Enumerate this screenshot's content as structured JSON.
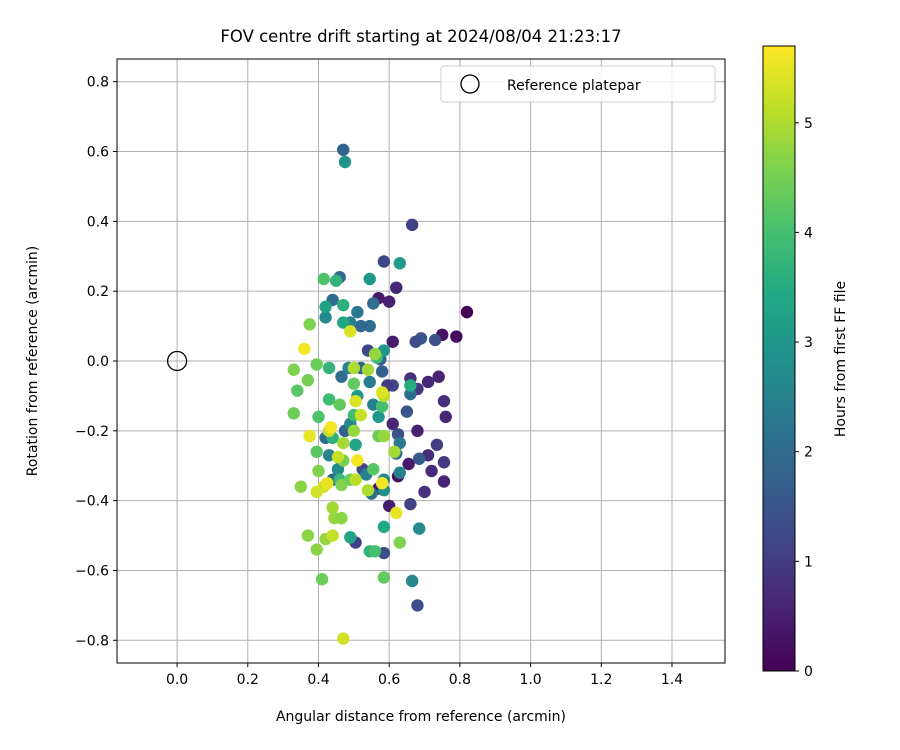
{
  "chart_data": {
    "type": "scatter",
    "title": "FOV centre drift starting at 2024/08/04 21:23:17",
    "xlabel": "Angular distance from reference (arcmin)",
    "ylabel": "Rotation from reference (arcmin)",
    "xlim": [
      -0.17,
      1.55
    ],
    "ylim": [
      -0.865,
      0.865
    ],
    "x_ticks": [
      0.0,
      0.2,
      0.4,
      0.6,
      0.8,
      1.0,
      1.2,
      1.4
    ],
    "x_tick_labels": [
      "0.0",
      "0.2",
      "0.4",
      "0.6",
      "0.8",
      "1.0",
      "1.2",
      "1.4"
    ],
    "y_ticks": [
      -0.8,
      -0.6,
      -0.4,
      -0.2,
      0.0,
      0.2,
      0.4,
      0.6,
      0.8
    ],
    "y_tick_labels": [
      "−0.8",
      "−0.6",
      "−0.4",
      "−0.2",
      "0.0",
      "0.2",
      "0.4",
      "0.6",
      "0.8"
    ],
    "grid": true,
    "legend": {
      "label": "Reference platepar",
      "position": "top-right"
    },
    "reference": {
      "x": 0.0,
      "y": 0.0
    },
    "colorbar": {
      "label": "Hours from first FF file",
      "colormap": "viridis",
      "range": [
        0,
        5.7
      ],
      "ticks": [
        0,
        1,
        2,
        3,
        4,
        5
      ],
      "tick_labels": [
        "0",
        "1",
        "2",
        "3",
        "4",
        "5"
      ]
    },
    "points": [
      {
        "x": 0.82,
        "y": 0.14,
        "h": 0.05
      },
      {
        "x": 0.79,
        "y": 0.07,
        "h": 0.15
      },
      {
        "x": 0.75,
        "y": 0.075,
        "h": 0.3
      },
      {
        "x": 0.6,
        "y": 0.17,
        "h": 0.5
      },
      {
        "x": 0.57,
        "y": 0.18,
        "h": 0.4
      },
      {
        "x": 0.62,
        "y": 0.21,
        "h": 0.6
      },
      {
        "x": 0.61,
        "y": 0.055,
        "h": 0.45
      },
      {
        "x": 0.74,
        "y": -0.045,
        "h": 0.55
      },
      {
        "x": 0.71,
        "y": -0.06,
        "h": 0.65
      },
      {
        "x": 0.76,
        "y": -0.16,
        "h": 0.6
      },
      {
        "x": 0.755,
        "y": -0.115,
        "h": 0.75
      },
      {
        "x": 0.72,
        "y": -0.315,
        "h": 0.7
      },
      {
        "x": 0.755,
        "y": -0.29,
        "h": 0.9
      },
      {
        "x": 0.755,
        "y": -0.345,
        "h": 0.55
      },
      {
        "x": 0.7,
        "y": -0.375,
        "h": 0.8
      },
      {
        "x": 0.735,
        "y": -0.24,
        "h": 1.0
      },
      {
        "x": 0.71,
        "y": -0.27,
        "h": 0.75
      },
      {
        "x": 0.68,
        "y": -0.2,
        "h": 0.5
      },
      {
        "x": 0.655,
        "y": -0.295,
        "h": 0.4
      },
      {
        "x": 0.625,
        "y": -0.33,
        "h": 0.3
      },
      {
        "x": 0.61,
        "y": -0.18,
        "h": 0.6
      },
      {
        "x": 0.6,
        "y": -0.415,
        "h": 0.45
      },
      {
        "x": 0.57,
        "y": -0.365,
        "h": 0.35
      },
      {
        "x": 0.66,
        "y": -0.05,
        "h": 0.8
      },
      {
        "x": 0.68,
        "y": -0.08,
        "h": 0.9
      },
      {
        "x": 0.66,
        "y": -0.41,
        "h": 1.1
      },
      {
        "x": 0.68,
        "y": -0.7,
        "h": 1.3
      },
      {
        "x": 0.665,
        "y": 0.39,
        "h": 1.1
      },
      {
        "x": 0.585,
        "y": 0.285,
        "h": 1.2
      },
      {
        "x": 0.73,
        "y": 0.06,
        "h": 1.4
      },
      {
        "x": 0.69,
        "y": 0.065,
        "h": 1.5
      },
      {
        "x": 0.675,
        "y": 0.055,
        "h": 1.3
      },
      {
        "x": 0.65,
        "y": -0.145,
        "h": 1.5
      },
      {
        "x": 0.625,
        "y": -0.21,
        "h": 1.4
      },
      {
        "x": 0.685,
        "y": -0.28,
        "h": 1.6
      },
      {
        "x": 0.585,
        "y": -0.55,
        "h": 1.3
      },
      {
        "x": 0.61,
        "y": -0.07,
        "h": 1.2
      },
      {
        "x": 0.595,
        "y": -0.07,
        "h": 1.0
      },
      {
        "x": 0.54,
        "y": 0.03,
        "h": 1.2
      },
      {
        "x": 0.505,
        "y": -0.52,
        "h": 1.1
      },
      {
        "x": 0.525,
        "y": -0.31,
        "h": 1.2
      },
      {
        "x": 0.47,
        "y": 0.605,
        "h": 1.8
      },
      {
        "x": 0.46,
        "y": 0.24,
        "h": 1.9
      },
      {
        "x": 0.44,
        "y": 0.175,
        "h": 2.0
      },
      {
        "x": 0.545,
        "y": 0.1,
        "h": 2.1
      },
      {
        "x": 0.52,
        "y": 0.1,
        "h": 1.9
      },
      {
        "x": 0.555,
        "y": 0.165,
        "h": 2.0
      },
      {
        "x": 0.575,
        "y": 0.005,
        "h": 1.8
      },
      {
        "x": 0.52,
        "y": -0.02,
        "h": 1.9
      },
      {
        "x": 0.58,
        "y": -0.03,
        "h": 1.7
      },
      {
        "x": 0.465,
        "y": -0.045,
        "h": 2.0
      },
      {
        "x": 0.66,
        "y": -0.095,
        "h": 2.1
      },
      {
        "x": 0.62,
        "y": -0.265,
        "h": 2.0
      },
      {
        "x": 0.55,
        "y": -0.38,
        "h": 2.1
      },
      {
        "x": 0.44,
        "y": -0.34,
        "h": 1.9
      },
      {
        "x": 0.42,
        "y": -0.22,
        "h": 2.0
      },
      {
        "x": 0.475,
        "y": -0.2,
        "h": 1.8
      },
      {
        "x": 0.51,
        "y": 0.14,
        "h": 2.3
      },
      {
        "x": 0.49,
        "y": 0.11,
        "h": 2.4
      },
      {
        "x": 0.485,
        "y": -0.02,
        "h": 2.5
      },
      {
        "x": 0.545,
        "y": -0.06,
        "h": 2.4
      },
      {
        "x": 0.555,
        "y": -0.125,
        "h": 2.5
      },
      {
        "x": 0.63,
        "y": -0.235,
        "h": 2.3
      },
      {
        "x": 0.63,
        "y": -0.32,
        "h": 2.5
      },
      {
        "x": 0.585,
        "y": -0.34,
        "h": 2.6
      },
      {
        "x": 0.535,
        "y": -0.325,
        "h": 2.4
      },
      {
        "x": 0.42,
        "y": 0.125,
        "h": 2.7
      },
      {
        "x": 0.49,
        "y": -0.18,
        "h": 2.6
      },
      {
        "x": 0.43,
        "y": -0.27,
        "h": 2.5
      },
      {
        "x": 0.455,
        "y": -0.31,
        "h": 2.7
      },
      {
        "x": 0.665,
        "y": -0.63,
        "h": 2.6
      },
      {
        "x": 0.685,
        "y": -0.48,
        "h": 2.7
      },
      {
        "x": 0.585,
        "y": -0.37,
        "h": 2.8
      },
      {
        "x": 0.475,
        "y": 0.57,
        "h": 2.9
      },
      {
        "x": 0.545,
        "y": 0.235,
        "h": 3.0
      },
      {
        "x": 0.63,
        "y": 0.28,
        "h": 3.1
      },
      {
        "x": 0.585,
        "y": 0.03,
        "h": 3.0
      },
      {
        "x": 0.51,
        "y": -0.1,
        "h": 3.1
      },
      {
        "x": 0.57,
        "y": -0.16,
        "h": 3.0
      },
      {
        "x": 0.42,
        "y": 0.155,
        "h": 3.3
      },
      {
        "x": 0.47,
        "y": 0.11,
        "h": 3.4
      },
      {
        "x": 0.49,
        "y": -0.505,
        "h": 3.3
      },
      {
        "x": 0.585,
        "y": -0.475,
        "h": 3.4
      },
      {
        "x": 0.66,
        "y": -0.07,
        "h": 3.5
      },
      {
        "x": 0.505,
        "y": -0.24,
        "h": 3.3
      },
      {
        "x": 0.45,
        "y": 0.23,
        "h": 3.7
      },
      {
        "x": 0.47,
        "y": 0.16,
        "h": 3.6
      },
      {
        "x": 0.43,
        "y": -0.02,
        "h": 3.7
      },
      {
        "x": 0.44,
        "y": -0.22,
        "h": 3.6
      },
      {
        "x": 0.46,
        "y": -0.34,
        "h": 3.8
      },
      {
        "x": 0.545,
        "y": -0.545,
        "h": 3.7
      },
      {
        "x": 0.565,
        "y": 0.01,
        "h": 3.9
      },
      {
        "x": 0.5,
        "y": -0.155,
        "h": 3.9
      },
      {
        "x": 0.43,
        "y": -0.11,
        "h": 3.9
      },
      {
        "x": 0.58,
        "y": -0.13,
        "h": 4.0
      },
      {
        "x": 0.56,
        "y": -0.545,
        "h": 4.0
      },
      {
        "x": 0.415,
        "y": 0.235,
        "h": 4.1
      },
      {
        "x": 0.4,
        "y": -0.16,
        "h": 4.1
      },
      {
        "x": 0.34,
        "y": -0.085,
        "h": 4.2
      },
      {
        "x": 0.37,
        "y": -0.055,
        "h": 4.5
      },
      {
        "x": 0.33,
        "y": -0.15,
        "h": 4.4
      },
      {
        "x": 0.46,
        "y": -0.125,
        "h": 4.3
      },
      {
        "x": 0.5,
        "y": -0.065,
        "h": 4.3
      },
      {
        "x": 0.57,
        "y": -0.215,
        "h": 4.4
      },
      {
        "x": 0.555,
        "y": -0.31,
        "h": 4.2
      },
      {
        "x": 0.585,
        "y": -0.62,
        "h": 4.3
      },
      {
        "x": 0.49,
        "y": -0.34,
        "h": 4.4
      },
      {
        "x": 0.41,
        "y": -0.625,
        "h": 4.4
      },
      {
        "x": 0.395,
        "y": -0.26,
        "h": 4.2
      },
      {
        "x": 0.47,
        "y": -0.285,
        "h": 4.5
      },
      {
        "x": 0.465,
        "y": -0.355,
        "h": 4.6
      },
      {
        "x": 0.375,
        "y": 0.105,
        "h": 4.6
      },
      {
        "x": 0.395,
        "y": -0.01,
        "h": 4.4
      },
      {
        "x": 0.33,
        "y": -0.025,
        "h": 4.6
      },
      {
        "x": 0.35,
        "y": -0.36,
        "h": 4.7
      },
      {
        "x": 0.4,
        "y": -0.315,
        "h": 4.6
      },
      {
        "x": 0.37,
        "y": -0.5,
        "h": 4.7
      },
      {
        "x": 0.395,
        "y": -0.54,
        "h": 4.7
      },
      {
        "x": 0.42,
        "y": -0.51,
        "h": 4.8
      },
      {
        "x": 0.44,
        "y": -0.42,
        "h": 4.9
      },
      {
        "x": 0.445,
        "y": -0.45,
        "h": 4.8
      },
      {
        "x": 0.465,
        "y": -0.45,
        "h": 4.7
      },
      {
        "x": 0.5,
        "y": -0.2,
        "h": 4.8
      },
      {
        "x": 0.47,
        "y": -0.235,
        "h": 4.9
      },
      {
        "x": 0.585,
        "y": -0.215,
        "h": 4.8
      },
      {
        "x": 0.615,
        "y": -0.26,
        "h": 4.9
      },
      {
        "x": 0.63,
        "y": -0.52,
        "h": 4.6
      },
      {
        "x": 0.54,
        "y": -0.025,
        "h": 4.9
      },
      {
        "x": 0.56,
        "y": 0.02,
        "h": 4.8
      },
      {
        "x": 0.5,
        "y": -0.02,
        "h": 5.0
      },
      {
        "x": 0.54,
        "y": -0.37,
        "h": 5.0
      },
      {
        "x": 0.505,
        "y": -0.34,
        "h": 5.1
      },
      {
        "x": 0.52,
        "y": -0.155,
        "h": 5.2
      },
      {
        "x": 0.585,
        "y": -0.1,
        "h": 5.1
      },
      {
        "x": 0.455,
        "y": -0.275,
        "h": 5.2
      },
      {
        "x": 0.395,
        "y": -0.375,
        "h": 5.3
      },
      {
        "x": 0.43,
        "y": -0.2,
        "h": 5.2
      },
      {
        "x": 0.415,
        "y": -0.36,
        "h": 5.3
      },
      {
        "x": 0.44,
        "y": -0.5,
        "h": 5.2
      },
      {
        "x": 0.47,
        "y": -0.795,
        "h": 5.3
      },
      {
        "x": 0.49,
        "y": 0.085,
        "h": 5.4
      },
      {
        "x": 0.505,
        "y": -0.115,
        "h": 5.4
      },
      {
        "x": 0.425,
        "y": -0.35,
        "h": 5.5
      },
      {
        "x": 0.58,
        "y": -0.09,
        "h": 5.4
      },
      {
        "x": 0.375,
        "y": -0.215,
        "h": 5.5
      },
      {
        "x": 0.36,
        "y": 0.035,
        "h": 5.6
      },
      {
        "x": 0.435,
        "y": -0.19,
        "h": 5.6
      },
      {
        "x": 0.51,
        "y": -0.285,
        "h": 5.6
      },
      {
        "x": 0.58,
        "y": -0.35,
        "h": 5.6
      },
      {
        "x": 0.62,
        "y": -0.435,
        "h": 5.5
      }
    ]
  }
}
